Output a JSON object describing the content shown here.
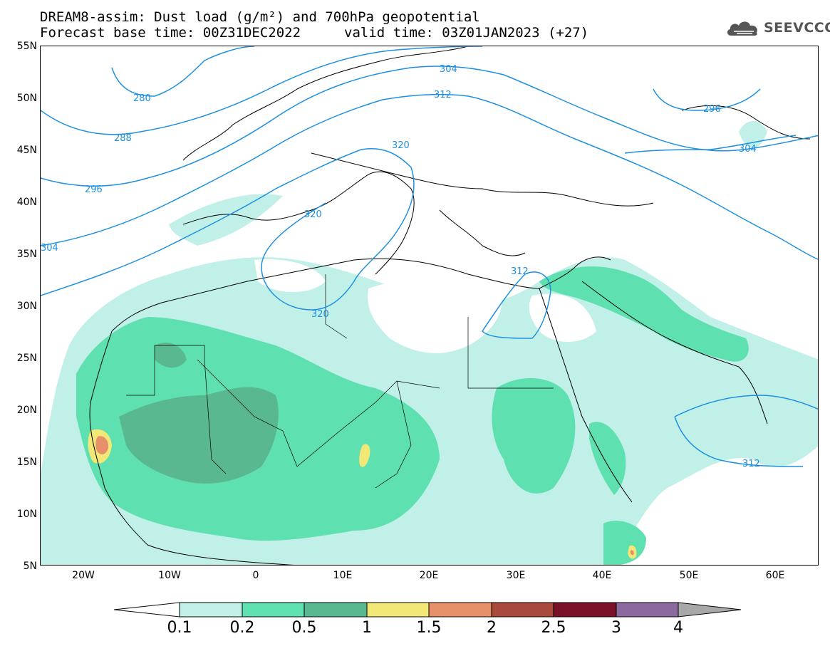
{
  "header": {
    "title_line1": "DREAM8-assim: Dust load (g/m²) and 700hPa geopotential",
    "title_line2": "Forecast base time: 00Z31DEC2022",
    "valid_time": "valid time: 03Z01JAN2023 (+27)",
    "logo_text": "SEEVCCC",
    "logo_icon": "cloud-icon"
  },
  "map": {
    "latitude_labels": [
      "55N",
      "50N",
      "45N",
      "40N",
      "35N",
      "30N",
      "25N",
      "20N",
      "15N",
      "10N",
      "5N"
    ],
    "longitude_labels": [
      "20W",
      "10W",
      "0",
      "10E",
      "20E",
      "30E",
      "40E",
      "50E",
      "60E"
    ],
    "contour_labels": [
      "280",
      "288",
      "296",
      "304",
      "312",
      "320",
      "312",
      "304",
      "296",
      "304",
      "320",
      "312",
      "320"
    ],
    "contour_color": "#1e90e0"
  },
  "legend": {
    "ticks": [
      "0.1",
      "0.2",
      "0.5",
      "1",
      "1.5",
      "2",
      "2.5",
      "3",
      "4"
    ],
    "colors": [
      "#c1f0e8",
      "#5fe0b0",
      "#5ab890",
      "#f2e878",
      "#e8906a",
      "#a84a3c",
      "#7a0f28",
      "#8c6aa0",
      "#a8a8a8"
    ],
    "below_color": "#ffffff"
  }
}
